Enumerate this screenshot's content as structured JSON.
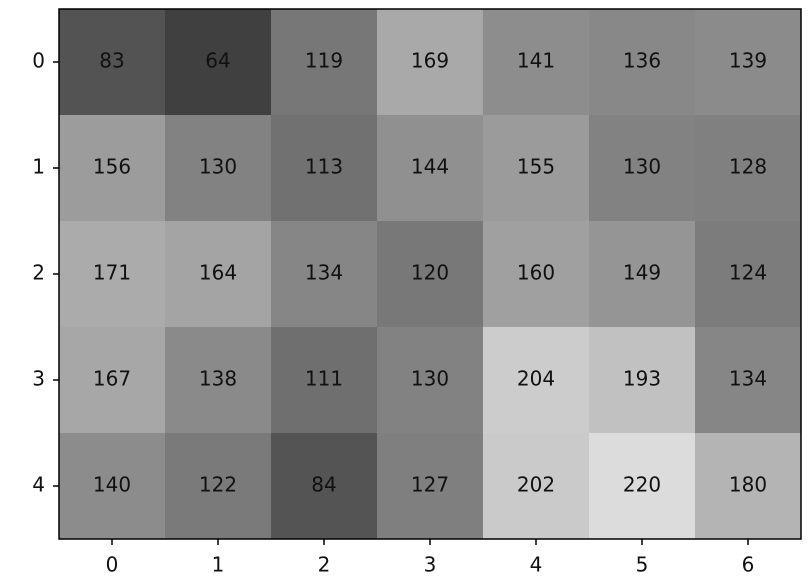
{
  "chart_data": {
    "type": "heatmap",
    "values": [
      [
        83,
        64,
        119,
        169,
        141,
        136,
        139
      ],
      [
        156,
        130,
        113,
        144,
        155,
        130,
        128
      ],
      [
        171,
        164,
        134,
        120,
        160,
        149,
        124
      ],
      [
        167,
        138,
        111,
        130,
        204,
        193,
        134
      ],
      [
        140,
        122,
        84,
        127,
        202,
        220,
        180
      ]
    ],
    "colormap": "gray",
    "xlim": [
      -0.5,
      6.5
    ],
    "ylim": [
      4.5,
      -0.5
    ],
    "xticks": [
      0,
      1,
      2,
      3,
      4,
      5,
      6
    ],
    "yticks": [
      0,
      1,
      2,
      3,
      4
    ]
  }
}
